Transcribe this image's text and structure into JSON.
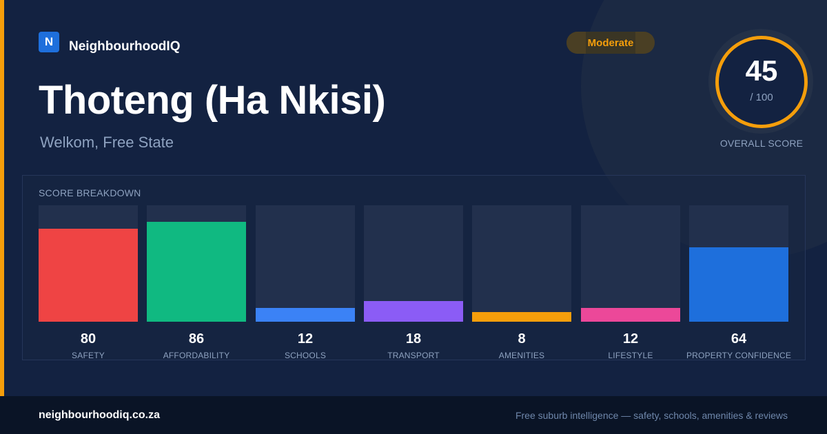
{
  "brand": {
    "logo_letter": "N",
    "name": "NeighbourhoodIQ"
  },
  "suburb": {
    "name": "Thoteng (Ha Nkisi)",
    "location": "Welkom, Free State"
  },
  "rating_badge": "Moderate",
  "overall": {
    "score": "45",
    "max": "/ 100",
    "caption": "OVERALL SCORE",
    "ring_color": "#f59e0b"
  },
  "breakdown": {
    "title": "SCORE BREAKDOWN",
    "items": [
      {
        "label": "SAFETY",
        "value": 80,
        "color": "#ef4444"
      },
      {
        "label": "AFFORDABILITY",
        "value": 86,
        "color": "#10b981"
      },
      {
        "label": "SCHOOLS",
        "value": 12,
        "color": "#3b82f6"
      },
      {
        "label": "TRANSPORT",
        "value": 18,
        "color": "#8b5cf6"
      },
      {
        "label": "AMENITIES",
        "value": 8,
        "color": "#f59e0b"
      },
      {
        "label": "LIFESTYLE",
        "value": 12,
        "color": "#ec4899"
      },
      {
        "label": "PROPERTY CONFIDENCE",
        "value": 64,
        "color": "#1e6fdc"
      }
    ]
  },
  "footer": {
    "domain": "neighbourhoodiq.co.za",
    "tagline": "Free suburb intelligence — safety, schools, amenities & reviews"
  },
  "colors": {
    "accent": "#f59e0b",
    "background": "#132241",
    "brand_blue": "#1e6fdc"
  }
}
